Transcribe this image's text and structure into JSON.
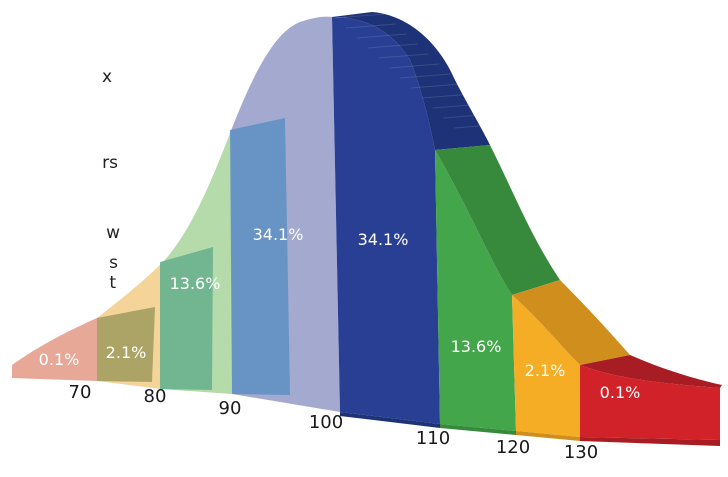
{
  "chart_data": {
    "type": "area",
    "title": "",
    "xlabel": "",
    "ylabel": "",
    "x_ticks": [
      "70",
      "80",
      "90",
      "100",
      "110",
      "120",
      "130"
    ],
    "segments": [
      {
        "label": "0.1%",
        "value": 0.1,
        "color": "#e8a898"
      },
      {
        "label": "2.1%",
        "value": 2.1,
        "color": "#f5d49a"
      },
      {
        "label": "13.6%",
        "value": 13.6,
        "color": "#b5dbaa"
      },
      {
        "label": "34.1%",
        "value": 34.1,
        "color": "#a4a9d0"
      },
      {
        "label": "34.1%",
        "value": 34.1,
        "color": "#283f93"
      },
      {
        "label": "13.6%",
        "value": 13.6,
        "color": "#44a64a"
      },
      {
        "label": "2.1%",
        "value": 2.1,
        "color": "#f4ad24"
      },
      {
        "label": "0.1%",
        "value": 0.1,
        "color": "#d22229"
      }
    ],
    "side_colors": [
      "#1e3377",
      "#378a3c",
      "#d08f1d",
      "#a81d24"
    ],
    "overlays": [
      {
        "label": "2.1%",
        "color": "#a5a062"
      },
      {
        "label": "13.6%",
        "color": "#6db38f"
      },
      {
        "label": "34.1%",
        "color": "#6391c3"
      }
    ],
    "left_text_fragments": [
      "x",
      "rs",
      "w",
      "s",
      "t"
    ]
  }
}
